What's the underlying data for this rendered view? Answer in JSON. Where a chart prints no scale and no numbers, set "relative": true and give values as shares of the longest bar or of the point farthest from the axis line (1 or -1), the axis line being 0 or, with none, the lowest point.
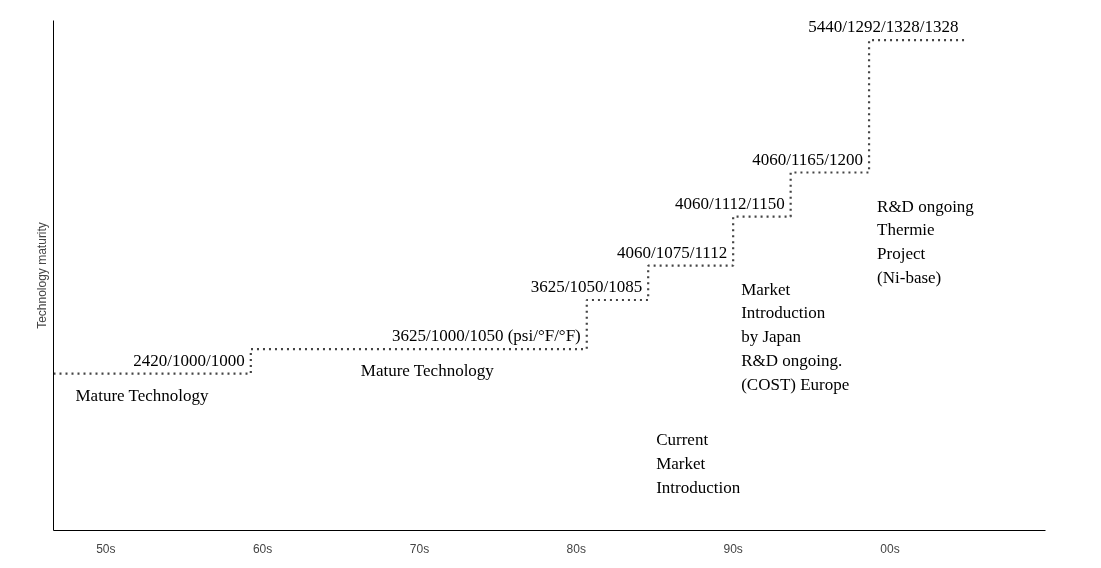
{
  "chart_data": {
    "type": "step",
    "relative": true,
    "ylabel": "Technology maturity",
    "x": [
      "1946-09",
      "1959-04",
      "1980-09",
      "1984-08",
      "1990-01",
      "1993-09",
      "1998-09",
      "2004-10"
    ],
    "xlim": [
      "1946-09",
      "2009-12"
    ],
    "xticks": [
      {
        "value": "1950",
        "label": "50s"
      },
      {
        "value": "1960",
        "label": "60s"
      },
      {
        "value": "1970",
        "label": "70s"
      },
      {
        "value": "1980",
        "label": "80s"
      },
      {
        "value": "1990",
        "label": "90s"
      },
      {
        "value": "2000",
        "label": "00s"
      }
    ],
    "series": [
      {
        "color": "#444444",
        "values": [
          0.32,
          0.37,
          0.47,
          0.54,
          0.64,
          0.73,
          1,
          1
        ]
      }
    ],
    "line_style": "dotted",
    "annotations": [
      {
        "text": "2420/1000/1000",
        "x": "1959-04",
        "y": 0.32
      },
      {
        "text": "3625/1000/1050 (psi/°F/°F)",
        "x": "1980-09",
        "y": 0.37
      },
      {
        "text": "3625/1050/1085",
        "x": "1984-08",
        "y": 0.47
      },
      {
        "text": "4060/1075/1112",
        "x": "1990-01",
        "y": 0.54
      },
      {
        "text": "4060/1112/1150",
        "x": "1993-09",
        "y": 0.64
      },
      {
        "text": "4060/1165/1200",
        "x": "1998-09",
        "y": 0.73
      },
      {
        "text": "5440/1292/1328/1328",
        "x": "2004-10",
        "y": 1
      },
      "Mature Technology",
      "Mature Technology",
      "Current\nMarket\nIntroduction",
      "Market\nIntroduction\nby Japan\nR&D ongoing.\n(COST) Europe",
      "R&D ongoing\nThermie\nProject\n(Ni-base)"
    ]
  }
}
